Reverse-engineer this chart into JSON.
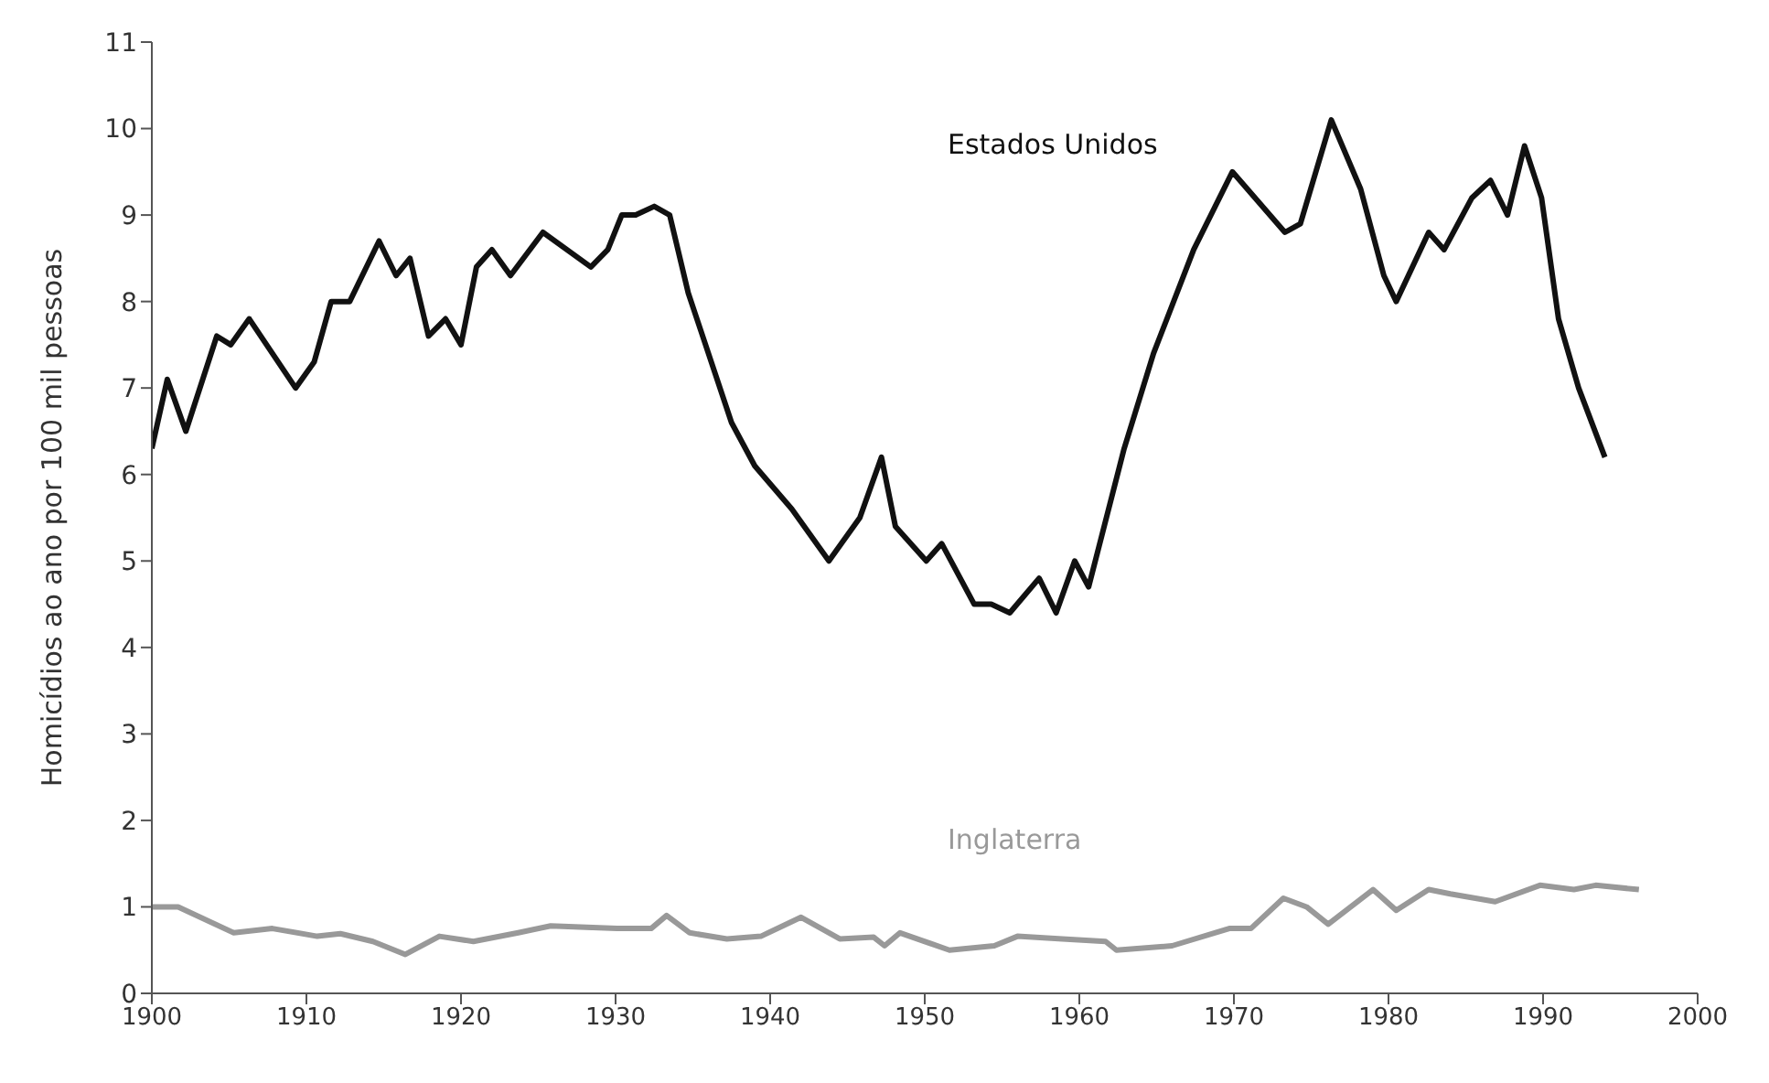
{
  "chart_data": {
    "type": "line",
    "ylabel": "Homicídios ao ano por 100 mil pessoas",
    "xlim": [
      1900,
      2000
    ],
    "ylim": [
      0,
      11
    ],
    "xticks": [
      1900,
      1910,
      1920,
      1930,
      1940,
      1950,
      1960,
      1970,
      1980,
      1990,
      2000
    ],
    "yticks": [
      0,
      1,
      2,
      3,
      4,
      5,
      6,
      7,
      8,
      9,
      10,
      11
    ],
    "grid": false,
    "legend": false,
    "marker": "none",
    "line_style": "solid",
    "series": [
      {
        "name": "Estados Unidos",
        "color": "#111111",
        "x": [
          1900,
          1901,
          1902.2,
          1904.2,
          1905.1,
          1906.3,
          1909.3,
          1910.5,
          1911.6,
          1912.8,
          1914.7,
          1915.8,
          1916.7,
          1917.9,
          1919,
          1920,
          1921,
          1922,
          1923.2,
          1925.3,
          1928.4,
          1929.5,
          1930.4,
          1931.3,
          1932.5,
          1933.5,
          1934.7,
          1937.5,
          1939,
          1941.4,
          1943.8,
          1945.8,
          1947.2,
          1948.1,
          1950.1,
          1951.1,
          1953.2,
          1954.3,
          1955.5,
          1957.4,
          1958.5,
          1959.7,
          1960.6,
          1962.9,
          1964.8,
          1967.4,
          1969.9,
          1973.3,
          1974.3,
          1976.3,
          1978.2,
          1979.7,
          1980.5,
          1982.6,
          1983.6,
          1985.4,
          1986.6,
          1987.7,
          1988.8,
          1989.9,
          1991,
          1992.3,
          1994
        ],
        "values": [
          6.3,
          7.1,
          6.5,
          7.6,
          7.5,
          7.8,
          7.0,
          7.3,
          8.0,
          8.0,
          8.7,
          8.3,
          8.5,
          7.6,
          7.8,
          7.5,
          8.4,
          8.6,
          8.3,
          8.8,
          8.4,
          8.6,
          9.0,
          9.0,
          9.1,
          9.0,
          8.1,
          6.6,
          6.1,
          5.6,
          5.0,
          5.5,
          6.2,
          5.4,
          5.0,
          5.2,
          4.5,
          4.5,
          4.4,
          4.8,
          4.4,
          5.0,
          4.7,
          6.3,
          7.4,
          8.6,
          9.5,
          8.8,
          8.9,
          10.1,
          9.3,
          8.3,
          8.0,
          8.8,
          8.6,
          9.2,
          9.4,
          9.0,
          9.8,
          9.2,
          7.8,
          7.0,
          6.2
        ]
      },
      {
        "name": "Inglaterra",
        "color": "#999999",
        "x": [
          1900,
          1901.7,
          1905.3,
          1907.8,
          1910.7,
          1912.2,
          1914.3,
          1916.4,
          1918.6,
          1920.8,
          1923.7,
          1925.8,
          1930.1,
          1932.3,
          1933.3,
          1934.8,
          1937.2,
          1939.4,
          1942,
          1944.5,
          1946.7,
          1947.4,
          1948.4,
          1951.6,
          1954.5,
          1956,
          1958.9,
          1961.7,
          1962.4,
          1966,
          1969.7,
          1971.1,
          1973.2,
          1974.7,
          1976.1,
          1979,
          1980.5,
          1982.6,
          1984,
          1986.9,
          1989.8,
          1992,
          1993.4,
          1996.2
        ],
        "values": [
          1.0,
          1.0,
          0.7,
          0.75,
          0.66,
          0.69,
          0.6,
          0.45,
          0.66,
          0.6,
          0.7,
          0.78,
          0.75,
          0.75,
          0.9,
          0.7,
          0.63,
          0.66,
          0.88,
          0.63,
          0.65,
          0.55,
          0.7,
          0.5,
          0.55,
          0.66,
          0.63,
          0.6,
          0.5,
          0.55,
          0.75,
          0.75,
          1.1,
          1.0,
          0.8,
          1.2,
          0.96,
          1.2,
          1.15,
          1.06,
          1.25,
          1.2,
          1.25,
          1.2
        ]
      }
    ]
  }
}
